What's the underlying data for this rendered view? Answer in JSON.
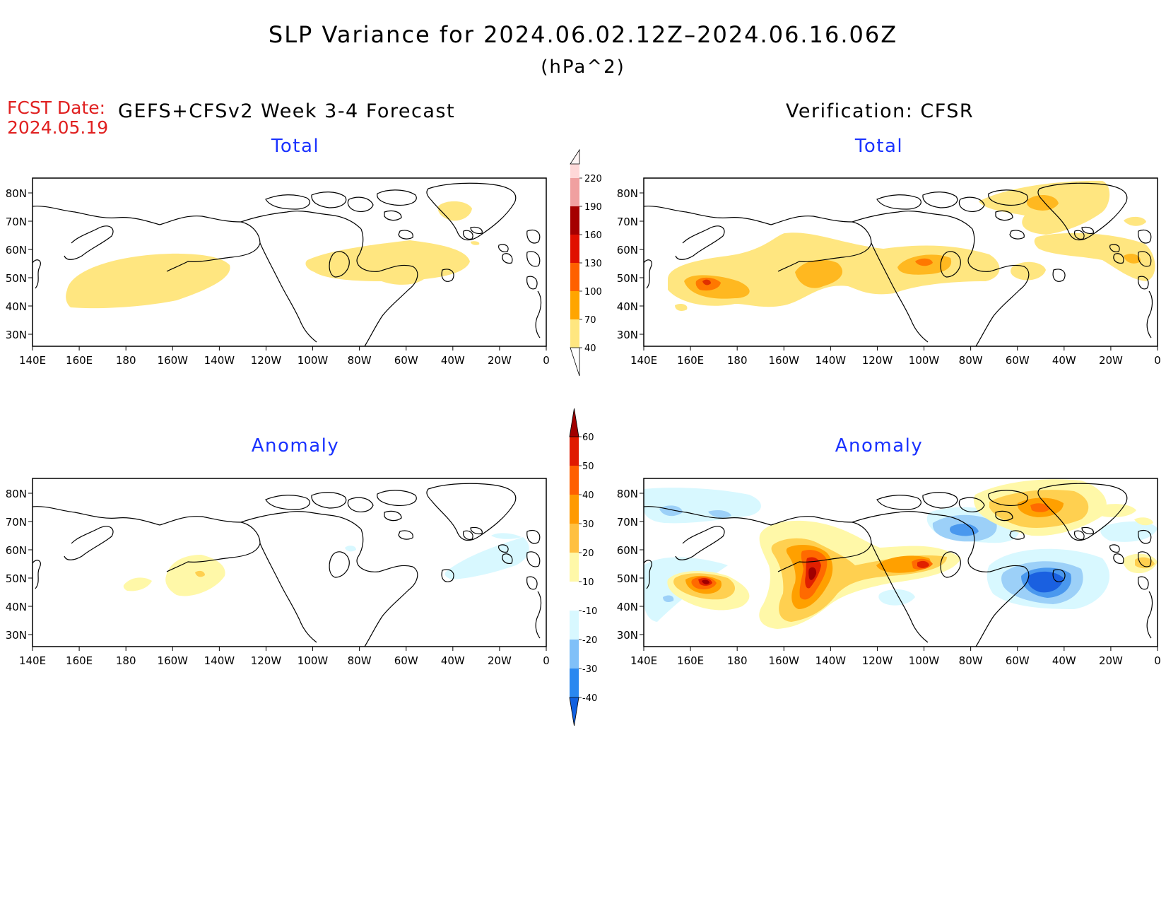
{
  "title": "SLP Variance for 2024.06.02.12Z–2024.06.16.06Z",
  "units": "(hPa^2)",
  "forecast": {
    "date_label": "FCST Date:",
    "date": "2024.05.19",
    "model": "GEFS+CFSv2 Week 3-4 Forecast"
  },
  "verification": {
    "title": "Verification: CFSR"
  },
  "panels": [
    {
      "id": "fcst-total",
      "title": "Total"
    },
    {
      "id": "verif-total",
      "title": "Total"
    },
    {
      "id": "fcst-anomaly",
      "title": "Anomaly"
    },
    {
      "id": "verif-anomaly",
      "title": "Anomaly"
    }
  ],
  "axes": {
    "lon_labels": [
      "140E",
      "160E",
      "180",
      "160W",
      "140W",
      "120W",
      "100W",
      "80W",
      "60W",
      "40W",
      "20W",
      "0"
    ],
    "lat_labels": [
      "80N",
      "70N",
      "60N",
      "50N",
      "40N",
      "30N"
    ]
  },
  "legends": {
    "total": {
      "levels": [
        "40",
        "70",
        "100",
        "130",
        "160",
        "190",
        "220"
      ],
      "colors": [
        "#ffe680",
        "#ffa500",
        "#ff6000",
        "#e01000",
        "#a50000",
        "#f0a0a0",
        "#ffd8d8",
        "#fff5f5"
      ]
    },
    "anomaly": {
      "levels": [
        "-40",
        "-30",
        "-20",
        "-10",
        "10",
        "20",
        "30",
        "40",
        "50",
        "60"
      ],
      "colors": [
        "#1060e0",
        "#2a88f0",
        "#80c0f8",
        "#d8f8ff",
        "#ffffff",
        "#fff8a8",
        "#ffc040",
        "#ff9a00",
        "#ff6000",
        "#e01a00",
        "#a00000"
      ]
    }
  },
  "map_colors": {
    "t40": "#ffe680",
    "t70": "#ffb820",
    "t100": "#ff7800",
    "t130": "#e03000",
    "a10": "#fff8a8",
    "a20": "#ffd050",
    "a30": "#ffa000",
    "a40": "#ff6a00",
    "a50": "#e02000",
    "a60": "#a00000",
    "n10": "#d8f8ff",
    "n20": "#9cd0f8",
    "n30": "#4a98ee",
    "n40": "#1a60e0"
  }
}
